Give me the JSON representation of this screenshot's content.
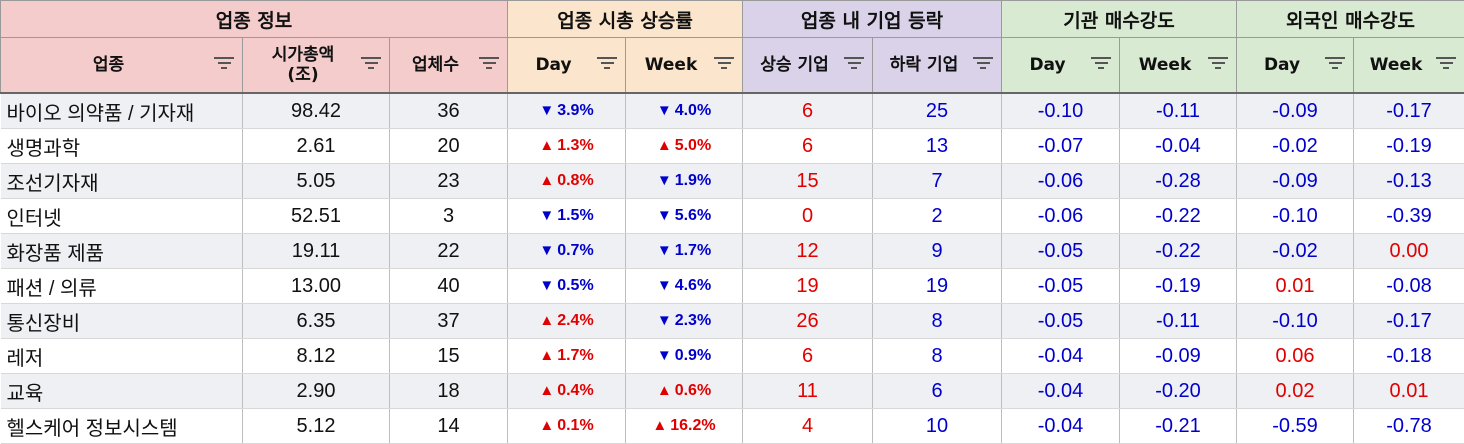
{
  "groups": {
    "info": "업종 정보",
    "mcap": "업종 시총 상승률",
    "updown": "업종 내 기업 등락",
    "inst": "기관 매수강도",
    "foreign": "외국인 매수강도"
  },
  "headers": {
    "sector": "업종",
    "mcap_line1": "시가총액",
    "mcap_line2": "(조)",
    "count": "업체수",
    "day": "Day",
    "week": "Week",
    "rise": "상승 기업",
    "fall": "하락 기업",
    "inst_day": "Day",
    "inst_week": "Week",
    "for_day": "Day",
    "for_week": "Week"
  },
  "colors": {
    "up": "#e00000",
    "down": "#0000cc"
  },
  "rows": [
    {
      "sector": "바이오 의약품 / 기자재",
      "mcap": "98.42",
      "count": "36",
      "day": "3.9%",
      "day_dir": "down",
      "week": "4.0%",
      "week_dir": "down",
      "rise": "6",
      "fall": "25",
      "inst_day": "-0.10",
      "inst_week": "-0.11",
      "for_day": "-0.09",
      "for_week": "-0.17"
    },
    {
      "sector": "생명과학",
      "mcap": "2.61",
      "count": "20",
      "day": "1.3%",
      "day_dir": "up",
      "week": "5.0%",
      "week_dir": "up",
      "rise": "6",
      "fall": "13",
      "inst_day": "-0.07",
      "inst_week": "-0.04",
      "for_day": "-0.02",
      "for_week": "-0.19"
    },
    {
      "sector": "조선기자재",
      "mcap": "5.05",
      "count": "23",
      "day": "0.8%",
      "day_dir": "up",
      "week": "1.9%",
      "week_dir": "down",
      "rise": "15",
      "fall": "7",
      "inst_day": "-0.06",
      "inst_week": "-0.28",
      "for_day": "-0.09",
      "for_week": "-0.13"
    },
    {
      "sector": "인터넷",
      "mcap": "52.51",
      "count": "3",
      "day": "1.5%",
      "day_dir": "down",
      "week": "5.6%",
      "week_dir": "down",
      "rise": "0",
      "fall": "2",
      "inst_day": "-0.06",
      "inst_week": "-0.22",
      "for_day": "-0.10",
      "for_week": "-0.39"
    },
    {
      "sector": "화장품 제품",
      "mcap": "19.11",
      "count": "22",
      "day": "0.7%",
      "day_dir": "down",
      "week": "1.7%",
      "week_dir": "down",
      "rise": "12",
      "fall": "9",
      "inst_day": "-0.05",
      "inst_week": "-0.22",
      "for_day": "-0.02",
      "for_week": "0.00"
    },
    {
      "sector": "패션 / 의류",
      "mcap": "13.00",
      "count": "40",
      "day": "0.5%",
      "day_dir": "down",
      "week": "4.6%",
      "week_dir": "down",
      "rise": "19",
      "fall": "19",
      "inst_day": "-0.05",
      "inst_week": "-0.19",
      "for_day": "0.01",
      "for_week": "-0.08"
    },
    {
      "sector": "통신장비",
      "mcap": "6.35",
      "count": "37",
      "day": "2.4%",
      "day_dir": "up",
      "week": "2.3%",
      "week_dir": "down",
      "rise": "26",
      "fall": "8",
      "inst_day": "-0.05",
      "inst_week": "-0.11",
      "for_day": "-0.10",
      "for_week": "-0.17"
    },
    {
      "sector": "레저",
      "mcap": "8.12",
      "count": "15",
      "day": "1.7%",
      "day_dir": "up",
      "week": "0.9%",
      "week_dir": "down",
      "rise": "6",
      "fall": "8",
      "inst_day": "-0.04",
      "inst_week": "-0.09",
      "for_day": "0.06",
      "for_week": "-0.18"
    },
    {
      "sector": "교육",
      "mcap": "2.90",
      "count": "18",
      "day": "0.4%",
      "day_dir": "up",
      "week": "0.6%",
      "week_dir": "up",
      "rise": "11",
      "fall": "6",
      "inst_day": "-0.04",
      "inst_week": "-0.20",
      "for_day": "0.02",
      "for_week": "0.01"
    },
    {
      "sector": "헬스케어 정보시스템",
      "mcap": "5.12",
      "count": "14",
      "day": "0.1%",
      "day_dir": "up",
      "week": "16.2%",
      "week_dir": "up",
      "rise": "4",
      "fall": "10",
      "inst_day": "-0.04",
      "inst_week": "-0.21",
      "for_day": "-0.59",
      "for_week": "-0.78"
    }
  ]
}
